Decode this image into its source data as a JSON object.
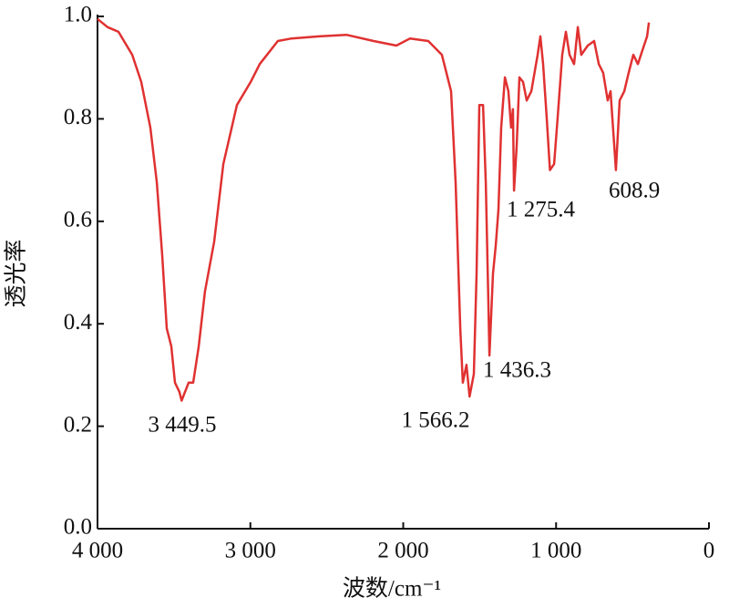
{
  "chart_data": {
    "type": "line",
    "x_label": "波数/cm⁻¹",
    "y_label": "透光率",
    "x": [
      4000,
      3934,
      3863,
      3773,
      3714,
      3654,
      3612,
      3577,
      3547,
      3517,
      3493,
      3464,
      3449.5,
      3404,
      3374,
      3338,
      3297,
      3237,
      3177,
      3088,
      2998,
      2939,
      2820,
      2730,
      2551,
      2372,
      2194,
      2045,
      1955,
      1836,
      1747,
      1687,
      1657,
      1627,
      1610,
      1586,
      1566.2,
      1538,
      1520,
      1502,
      1478,
      1460,
      1443,
      1436.3,
      1413,
      1395,
      1377,
      1359,
      1335,
      1312,
      1294,
      1282,
      1275.4,
      1258,
      1240,
      1216,
      1192,
      1162,
      1121,
      1103,
      1085,
      1061,
      1040,
      1013,
      990,
      960,
      936,
      912,
      882,
      858,
      835,
      793,
      751,
      721,
      692,
      662,
      644,
      608.9,
      584,
      554,
      525,
      495,
      465,
      435,
      405,
      393
    ],
    "values": [
      0.995,
      0.979,
      0.97,
      0.925,
      0.872,
      0.783,
      0.676,
      0.534,
      0.391,
      0.356,
      0.285,
      0.267,
      0.25,
      0.285,
      0.285,
      0.356,
      0.463,
      0.56,
      0.712,
      0.827,
      0.872,
      0.907,
      0.952,
      0.957,
      0.961,
      0.964,
      0.952,
      0.943,
      0.957,
      0.952,
      0.925,
      0.854,
      0.676,
      0.391,
      0.285,
      0.32,
      0.258,
      0.302,
      0.498,
      0.827,
      0.827,
      0.676,
      0.445,
      0.338,
      0.498,
      0.552,
      0.623,
      0.783,
      0.881,
      0.854,
      0.783,
      0.819,
      0.66,
      0.747,
      0.881,
      0.872,
      0.836,
      0.854,
      0.925,
      0.961,
      0.907,
      0.801,
      0.7,
      0.712,
      0.801,
      0.925,
      0.97,
      0.925,
      0.907,
      0.979,
      0.925,
      0.943,
      0.952,
      0.907,
      0.89,
      0.836,
      0.854,
      0.7,
      0.836,
      0.854,
      0.89,
      0.925,
      0.907,
      0.934,
      0.961,
      0.988
    ],
    "color": "#e03131",
    "xlim": [
      4000,
      0
    ],
    "xticks": [
      {
        "value": 4000,
        "label": "4 000"
      },
      {
        "value": 3000,
        "label": "3 000"
      },
      {
        "value": 2000,
        "label": "2 000"
      },
      {
        "value": 1000,
        "label": "1 000"
      },
      0
    ],
    "ylim": [
      0,
      1
    ],
    "yticks": [
      {
        "value": 0,
        "label": "0.0"
      },
      0.2,
      0.4,
      0.6,
      0.8,
      {
        "value": 1,
        "label": "1.0"
      }
    ],
    "annotations": [
      "3 449.5",
      "1 566.2",
      "1 436.3",
      "1 275.4",
      "608.9"
    ]
  }
}
